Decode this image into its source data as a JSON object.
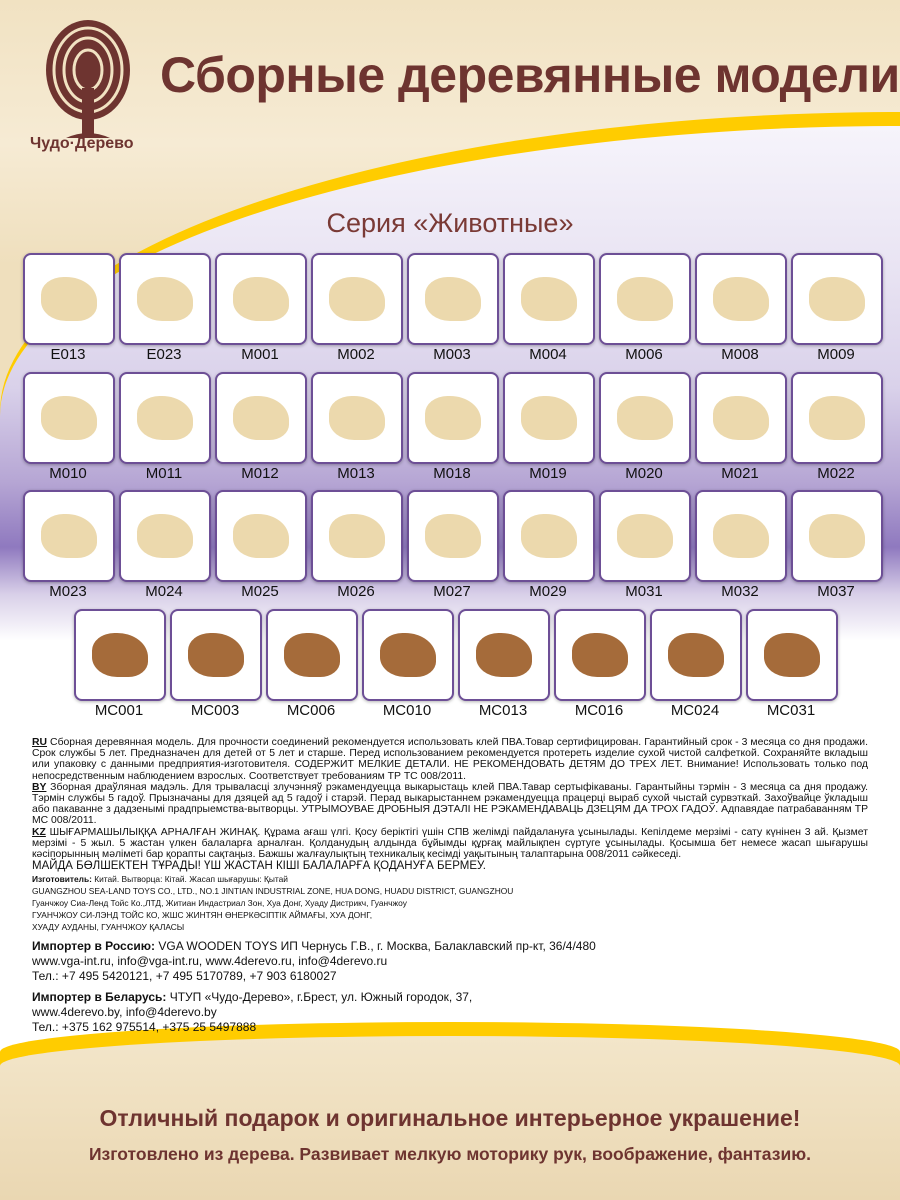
{
  "brand": {
    "logo_text": "Чудо·Дерево",
    "color": "#6e3430"
  },
  "header": {
    "title": "Сборные деревянные модели",
    "series": "Серия «Животные»"
  },
  "colors": {
    "accent_yellow": "#ffcc00",
    "tile_border": "#6d4f96",
    "purple": "#8f79bf"
  },
  "products": {
    "rows": [
      [
        "E013",
        "E023",
        "M001",
        "M002",
        "M003",
        "M004",
        "M006",
        "M008",
        "M009"
      ],
      [
        "M010",
        "M011",
        "M012",
        "M013",
        "M018",
        "M019",
        "M020",
        "M021",
        "M022"
      ],
      [
        "M023",
        "M024",
        "M025",
        "M026",
        "M027",
        "M029",
        "M031",
        "M032",
        "M037"
      ],
      [
        "MC001",
        "MC003",
        "MC006",
        "MC010",
        "MC013",
        "MC016",
        "MC024",
        "MC031"
      ]
    ]
  },
  "legal": {
    "ru_tag": "RU",
    "ru": " Сборная деревянная модель. Для прочности соединений рекомендуется использовать клей ПВА.Товар сертифицирован. Гарантийный срок - 3 месяца со дня продажи. Срок службы 5 лет. Предназначен для детей от 5 лет и старше. Перед использованием рекомендуется протереть изделие сухой чистой салфеткой. Сохраняйте вкладыш или упаковку с данными предприятия-изготовителя. СОДЕРЖИТ МЕЛКИЕ ДЕТАЛИ. НЕ РЕКОМЕНДОВАТЬ ДЕТЯМ ДО ТРЕХ ЛЕТ.  Внимание! Использовать только под непосредственным наблюдением взрослых. Соответствует требованиям ТР ТС 008/2011.",
    "by_tag": "BY",
    "by": "  Зборная драўляная мадэль. Для трываласці злучэнняў рэкамендуецца выкарыстаць клей ПВА.Тавар сертыфікаваны. Гарантыйны тэрмін - 3 месяца са дня продажу. Тэрмін службы 5 гадоў. Прызначаны для дзяцей ад 5 гадоў і старэй. Перад выкарыстаннем рэкамендуецца працерці выраб сухой чыстай сурвэткай. Захоўвайце ўкладыш або пакаванне з дадзенымі прадпрыемства-вытворцы. УТРЫМОУВАЕ ДРОБНЫЯ ДЭТАЛІ НЕ РЭКАМЕНДАВАЦЬ ДЗЕЦЯМ ДА ТРОХ ГАДОЎ. Адпавядае патрабаванням ТР МС 008/2011.",
    "kz_tag": "KZ",
    "kz": "  ШЫҒАРМАШЫЛЫҚҚА АРНАЛҒАН ЖИНАҚ. Құрама ағаш үлгі. Қосу беріктігі үшін СПВ желімді пайдалануға ұсынылады. Кепілдеме мерзімі - сату күнінен 3 ай. Қызмет мерзімі - 5 жыл. 5 жастан үлкен балаларға арналған. Қолданудың алдында бұйымды құрғақ майлықпен сүртуге ұсынылады. Қосымша бет немесе жасап шығарушы кәсіпорынның мәліметі бар қорапты сақтаңыз. Бажшы жалғаулықтың техникалық кесімді уақытының талаптарына 008/2011 сәйкеседі.",
    "kz_warning": "МАЙДА БӨЛШЕКТЕН ТҰРАДЫ! ҮШ ЖАСТАН КІШІ БАЛАЛАРҒА ҚОДАНУҒА БЕРМЕУ.",
    "maker_label": "Изготовитель:",
    "maker": " Китай.  Вытворца: Кітай. Жасап шығарушы: Қытай",
    "maker_en": "GUANGZHOU SEA-LAND TOYS CO., LTD., NO.1 JINTIAN INDUSTRIAL ZONE, HUA DONG, HUADU DISTRICT, GUANGZHOU",
    "maker_ru": "Гуанчжоу Сиа-Ленд Тойс Ко.,ЛТД, Житиан Индастриал Зон, Хуа Донг, Хуаду Дистрикч, Гуанчжоу",
    "maker_kz1": "ГУАНЧЖОУ СИ-ЛЭНД ТОЙС КО, ЖШС ЖИНТЯН ӨНЕРКӘСІПТІК АЙМАҒЫ, ХУА ДОНГ,",
    "maker_kz2": "ХУАДУ АУДАНЫ, ГУАНЧЖОУ ҚАЛАСЫ",
    "ru_importer_label": "Импортер в Россию:",
    "ru_importer": " VGA WOODEN TOYS ИП Чернусь Г.В., г. Москва, Балаклавский пр-кт, 36/4/480",
    "ru_importer_web": "www.vga-int.ru, info@vga-int.ru, www.4derevo.ru, info@4derevo.ru",
    "ru_importer_tel": "Тел.: +7 495 5420121, +7 495 5170789, +7 903 6180027",
    "by_importer_label": "Импортер в Беларусь:",
    "by_importer": " ЧТУП «Чудо-Дерево», г.Брест, ул. Южный городок, 37,",
    "by_importer_web": "www.4derevo.by, info@4derevo.by",
    "by_importer_tel": "Тел.: +375 162 975514, +375 25 5497888"
  },
  "footer": {
    "slogan": "Отличный подарок и оригинальное интерьерное украшение!",
    "subslogan": "Изготовлено из дерева. Развивает мелкую моторику рук, воображение, фантазию."
  }
}
